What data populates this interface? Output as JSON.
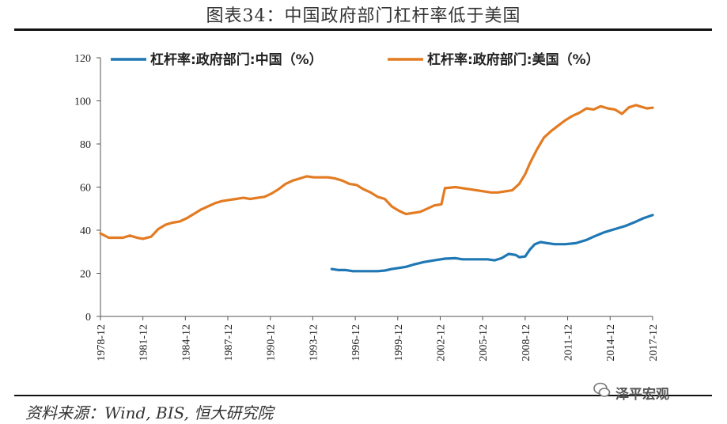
{
  "header": {
    "title": "图表34：中国政府部门杠杆率低于美国"
  },
  "footer": {
    "source": "资料来源：Wind, BIS, 恒大研究院",
    "watermark": "泽平宏观"
  },
  "colors": {
    "china": "#1f77b4",
    "usa": "#e37b22",
    "axis": "#555555"
  },
  "chart_data": {
    "type": "line",
    "ylim": [
      0,
      120
    ],
    "yticks": [
      0,
      20,
      40,
      60,
      80,
      100,
      120
    ],
    "xlim": [
      1978.92,
      2017.92
    ],
    "xticks": [
      "1978-12",
      "1981-12",
      "1984-12",
      "1987-12",
      "1990-12",
      "1993-12",
      "1996-12",
      "1999-12",
      "2002-12",
      "2005-12",
      "2008-12",
      "2011-12",
      "2014-12",
      "2017-12"
    ],
    "legend_position": "top",
    "series": [
      {
        "name": "杠杆率:政府部门:中国（%）",
        "color": "#1f77b4",
        "points": [
          [
            1995.25,
            22
          ],
          [
            1995.75,
            21.5
          ],
          [
            1996.25,
            21.5
          ],
          [
            1996.75,
            21
          ],
          [
            1997.5,
            21
          ],
          [
            1998.5,
            21
          ],
          [
            1999,
            21.3
          ],
          [
            1999.5,
            22
          ],
          [
            2000.5,
            23
          ],
          [
            2001,
            24
          ],
          [
            2001.75,
            25.2
          ],
          [
            2002.5,
            26
          ],
          [
            2003.25,
            26.8
          ],
          [
            2004,
            27
          ],
          [
            2004.5,
            26.5
          ],
          [
            2005.5,
            26.5
          ],
          [
            2006.25,
            26.5
          ],
          [
            2006.75,
            26
          ],
          [
            2007.25,
            27
          ],
          [
            2007.75,
            29
          ],
          [
            2008.25,
            28.5
          ],
          [
            2008.5,
            27.5
          ],
          [
            2008.92,
            27.8
          ],
          [
            2009.25,
            31
          ],
          [
            2009.6,
            33.5
          ],
          [
            2010,
            34.5
          ],
          [
            2010.5,
            34
          ],
          [
            2011,
            33.5
          ],
          [
            2011.75,
            33.5
          ],
          [
            2012.5,
            34
          ],
          [
            2013.25,
            35.5
          ],
          [
            2013.75,
            37
          ],
          [
            2014.5,
            39
          ],
          [
            2015.25,
            40.5
          ],
          [
            2016,
            42
          ],
          [
            2016.75,
            44
          ],
          [
            2017.25,
            45.5
          ],
          [
            2017.92,
            47
          ]
        ]
      },
      {
        "name": "杠杆率:政府部门:美国（%）",
        "color": "#e37b22",
        "points": [
          [
            1978.92,
            38.5
          ],
          [
            1979.5,
            36.5
          ],
          [
            1980,
            36.5
          ],
          [
            1980.5,
            36.5
          ],
          [
            1981,
            37.5
          ],
          [
            1981.5,
            36.5
          ],
          [
            1981.92,
            36
          ],
          [
            1982.5,
            37
          ],
          [
            1983,
            40.5
          ],
          [
            1983.5,
            42.5
          ],
          [
            1984,
            43.5
          ],
          [
            1984.5,
            44
          ],
          [
            1985,
            45.5
          ],
          [
            1985.5,
            47.5
          ],
          [
            1986,
            49.5
          ],
          [
            1986.5,
            51
          ],
          [
            1987,
            52.5
          ],
          [
            1987.5,
            53.5
          ],
          [
            1988,
            54
          ],
          [
            1988.5,
            54.5
          ],
          [
            1989,
            55
          ],
          [
            1989.5,
            54.5
          ],
          [
            1990,
            55
          ],
          [
            1990.5,
            55.5
          ],
          [
            1991,
            57
          ],
          [
            1991.5,
            59
          ],
          [
            1992,
            61.5
          ],
          [
            1992.5,
            63
          ],
          [
            1993,
            64
          ],
          [
            1993.5,
            65
          ],
          [
            1994,
            64.5
          ],
          [
            1995,
            64.5
          ],
          [
            1995.5,
            64
          ],
          [
            1996,
            63
          ],
          [
            1996.5,
            61.5
          ],
          [
            1997,
            61
          ],
          [
            1997.5,
            59
          ],
          [
            1998,
            57.5
          ],
          [
            1998.5,
            55.5
          ],
          [
            1999,
            54.5
          ],
          [
            1999.5,
            51
          ],
          [
            2000,
            49
          ],
          [
            2000.5,
            47.5
          ],
          [
            2001,
            48
          ],
          [
            2001.5,
            48.5
          ],
          [
            2002,
            50
          ],
          [
            2002.5,
            51.5
          ],
          [
            2003,
            52
          ],
          [
            2003.25,
            59.5
          ],
          [
            2004,
            60
          ],
          [
            2004.5,
            59.5
          ],
          [
            2005,
            59
          ],
          [
            2005.5,
            58.5
          ],
          [
            2006,
            58
          ],
          [
            2006.5,
            57.5
          ],
          [
            2007,
            57.5
          ],
          [
            2007.5,
            58
          ],
          [
            2008,
            58.5
          ],
          [
            2008.5,
            61.5
          ],
          [
            2008.92,
            66
          ],
          [
            2009.25,
            71
          ],
          [
            2009.75,
            77.5
          ],
          [
            2010.25,
            83
          ],
          [
            2010.75,
            86
          ],
          [
            2011.25,
            88.5
          ],
          [
            2011.75,
            91
          ],
          [
            2012.25,
            93
          ],
          [
            2012.75,
            94.5
          ],
          [
            2013.25,
            96.5
          ],
          [
            2013.75,
            96
          ],
          [
            2014.25,
            97.5
          ],
          [
            2014.75,
            96.5
          ],
          [
            2015.25,
            96
          ],
          [
            2015.75,
            94
          ],
          [
            2016.25,
            97
          ],
          [
            2016.75,
            98
          ],
          [
            2017,
            97.5
          ],
          [
            2017.5,
            96.5
          ],
          [
            2017.92,
            96.8
          ]
        ]
      }
    ]
  }
}
